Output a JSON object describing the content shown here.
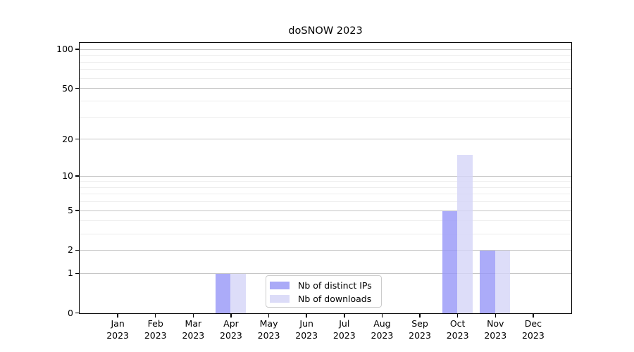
{
  "chart_data": {
    "type": "bar",
    "title": "doSNOW 2023",
    "year": "2023",
    "categories": [
      "Jan",
      "Feb",
      "Mar",
      "Apr",
      "May",
      "Jun",
      "Jul",
      "Aug",
      "Sep",
      "Oct",
      "Nov",
      "Dec"
    ],
    "series": [
      {
        "name": "Nb of distinct IPs",
        "color": "#aaaaf7",
        "bar_fill": "rgba(150,150,247,0.8)",
        "values": [
          0,
          0,
          0,
          1,
          0,
          0,
          0,
          0,
          0,
          5,
          2,
          0
        ]
      },
      {
        "name": "Nb of downloads",
        "color": "#dcdcf8",
        "bar_fill": "rgba(212,212,248,0.8)",
        "values": [
          0,
          0,
          0,
          1,
          0,
          0,
          0,
          0,
          0,
          15,
          2,
          0
        ]
      }
    ],
    "scale": "log1p",
    "ylim": [
      0,
      111.5
    ],
    "y_ticks": [
      0,
      1,
      2,
      5,
      10,
      20,
      50,
      100
    ],
    "y_minor_grid": [
      3,
      4,
      6,
      7,
      8,
      9,
      30,
      40,
      60,
      70,
      80,
      90
    ],
    "grid": "horizontal",
    "legend_position": "inside-bottom-center",
    "colors": {
      "grid_major": "#c6c6c6",
      "grid_minor": "#ededed",
      "spine": "#000000",
      "text": "#000000",
      "background": "#ffffff"
    }
  }
}
